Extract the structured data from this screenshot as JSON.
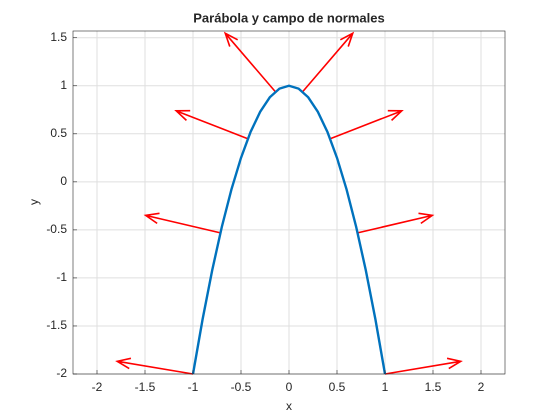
{
  "chart_data": {
    "type": "quiver",
    "title": "Parábola y campo de normales",
    "x_label": "x",
    "y_label": "y",
    "xlim": [
      -2.25,
      2.25
    ],
    "ylim": [
      -2,
      1.57
    ],
    "xticks": [
      -2,
      -1.5,
      -1,
      -0.5,
      0,
      0.5,
      1,
      1.5,
      2
    ],
    "yticks": [
      -2,
      -1.5,
      -1,
      -0.5,
      0,
      0.5,
      1,
      1.5
    ],
    "grid": true,
    "curve": {
      "color": "#0072bd",
      "x": [
        -1,
        -0.9,
        -0.8,
        -0.7,
        -0.6,
        -0.5,
        -0.4,
        -0.3,
        -0.2,
        -0.1,
        0,
        0.1,
        0.2,
        0.3,
        0.4,
        0.5,
        0.6,
        0.7,
        0.8,
        0.9,
        1
      ],
      "y": [
        -2,
        -1.43,
        -0.92,
        -0.47,
        -0.08,
        0.25,
        0.52,
        0.73,
        0.88,
        0.97,
        1,
        0.97,
        0.88,
        0.73,
        0.52,
        0.25,
        -0.08,
        -0.47,
        -0.92,
        -1.43,
        -2
      ]
    },
    "arrows": {
      "color": "#ff0000",
      "x": [
        -1,
        -0.714,
        -0.429,
        -0.143,
        0.143,
        0.429,
        0.714,
        1
      ],
      "y": [
        -2,
        -0.531,
        0.449,
        0.939,
        0.939,
        0.449,
        -0.531,
        -2
      ],
      "u": [
        -0.789,
        -0.779,
        -0.746,
        -0.521,
        0.521,
        0.746,
        0.779,
        0.789
      ],
      "v": [
        0.132,
        0.182,
        0.29,
        0.607,
        0.607,
        0.29,
        0.182,
        0.132
      ]
    }
  }
}
